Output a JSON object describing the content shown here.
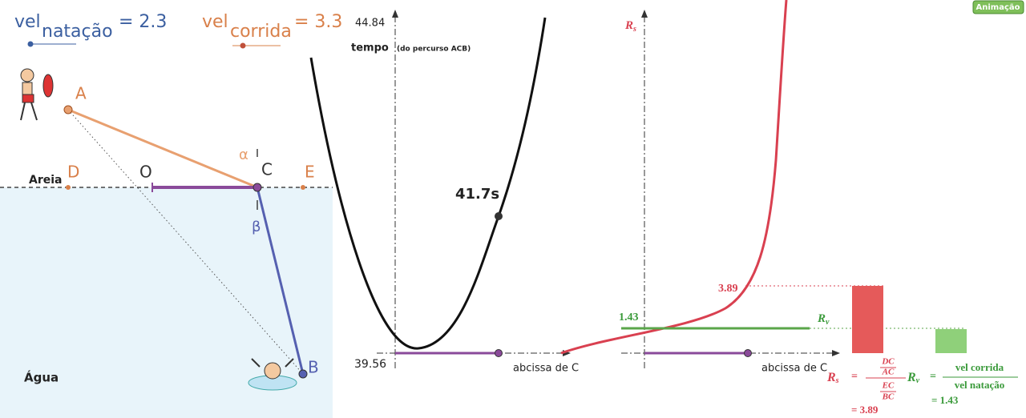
{
  "sliders": [
    {
      "label": "vel",
      "subscript": "natação",
      "value": "= 2.3"
    },
    {
      "label": "vel",
      "subscript": "corrida",
      "value": "= 3.3"
    }
  ],
  "geometry": {
    "points": {
      "A": "A",
      "B": "B",
      "C": "C",
      "D": "D",
      "E": "E",
      "O": "O"
    },
    "alpha": "α",
    "beta": "β",
    "sand": "Areia",
    "water": "Água"
  },
  "time_graph": {
    "y_max": "44.84",
    "y_min": "39.56",
    "y_label": "tempo",
    "y_label_note": "(do percurso ACB)",
    "point_label": "41.7s",
    "x_label": "abcissa de C"
  },
  "ratio_graph": {
    "rs_axis": "R",
    "rs_axis_sub": "s",
    "rs_value": "3.89",
    "rv_value": "1.43",
    "rv_label": "R",
    "rv_label_sub": "v",
    "x_label": "abcissa de C",
    "rs_formula": {
      "lhs": "R",
      "lhs_sub": "s",
      "eq": "=",
      "num_num": "DC",
      "num_den": "AC",
      "den_num": "EC",
      "den_den": "BC",
      "result": "= 3.89"
    },
    "rv_formula": {
      "lhs": "R",
      "lhs_sub": "v",
      "eq": "=",
      "num": "vel corrida",
      "den": "vel natação",
      "result": "= 1.43"
    }
  },
  "button": "Animação"
}
